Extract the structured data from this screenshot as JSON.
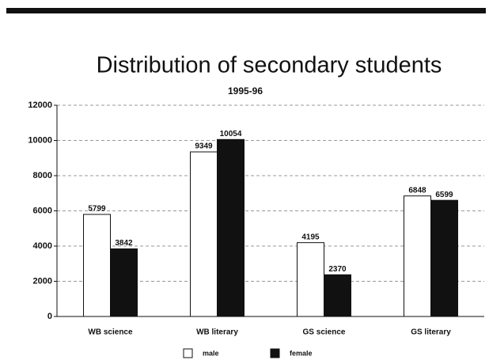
{
  "chart_data": {
    "type": "bar",
    "title": "Distribution of secondary students",
    "subtitle": "1995-96",
    "categories": [
      "WB science",
      "WB literary",
      "GS science",
      "GS literary"
    ],
    "series": [
      {
        "name": "male",
        "color": "#ffffff",
        "values": [
          5799,
          9349,
          4195,
          6848
        ]
      },
      {
        "name": "female",
        "color": "#111111",
        "values": [
          3842,
          10054,
          2370,
          6599
        ]
      }
    ],
    "ylim": [
      0,
      12000
    ],
    "yticks": [
      0,
      2000,
      4000,
      6000,
      8000,
      10000,
      12000
    ],
    "grid": true
  }
}
